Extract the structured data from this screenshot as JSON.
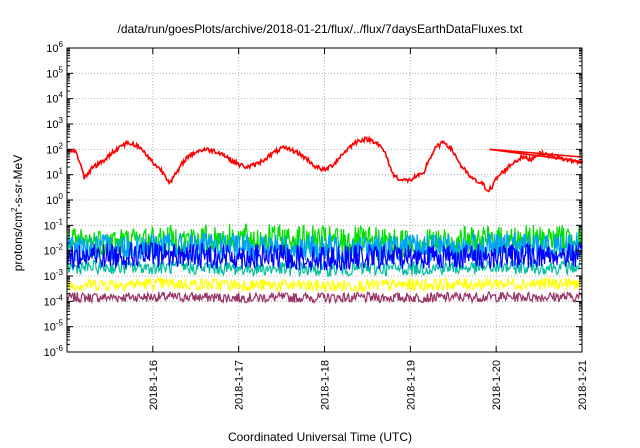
{
  "chart_data": {
    "type": "line",
    "title": "/data/run/goesPlots/archive/2018-01-21/flux/../flux/7daysEarthDataFluxes.txt",
    "xlabel": "Coordinated Universal Time (UTC)",
    "ylabel": {
      "before": "protons/cm",
      "sup": "2",
      "after": "-s-sr-MeV"
    },
    "x_ticks": [
      "2018-1-16",
      "2018-1-17",
      "2018-1-18",
      "2018-1-19",
      "2018-1-20",
      "2018-1-21"
    ],
    "xlim": [
      "2018-01-15 00:00",
      "2018-01-21 00:00"
    ],
    "y_scale": "log",
    "ylim": [
      1e-06,
      1000000.0
    ],
    "y_ticks": [
      "10^-6",
      "10^-5",
      "10^-4",
      "10^-3",
      "10^-2",
      "10^-1",
      "10^0",
      "10^1",
      "10^2",
      "10^3",
      "10^4",
      "10^5",
      "10^6"
    ],
    "grid": true,
    "legend": "none",
    "series": [
      {
        "color": "#ff0000",
        "x_days_after_2018_01_15": [
          0.0,
          0.05,
          0.1,
          0.15,
          0.2,
          0.25,
          0.3,
          0.4,
          0.5,
          0.6,
          0.7,
          0.8,
          0.9,
          1.0,
          1.1,
          1.2,
          1.3,
          1.35,
          1.4,
          1.5,
          1.6,
          1.7,
          1.8,
          1.9,
          2.0,
          2.1,
          2.2,
          2.3,
          2.4,
          2.5,
          2.6,
          2.7,
          2.8,
          2.9,
          3.0,
          3.1,
          3.2,
          3.3,
          3.4,
          3.5,
          3.6,
          3.7,
          3.8,
          3.9,
          4.0,
          4.05,
          4.1,
          4.15,
          4.2,
          4.3,
          4.4,
          4.5,
          4.6,
          4.7,
          4.75,
          4.8,
          4.85,
          4.9,
          4.95,
          5.0,
          5.1,
          5.2,
          5.3,
          5.4,
          5.5,
          5.6,
          5.7,
          5.8,
          5.9,
          6.0
        ],
        "values": [
          60,
          100,
          80,
          30,
          8,
          12,
          20,
          30,
          60,
          120,
          180,
          150,
          80,
          30,
          15,
          5,
          15,
          30,
          50,
          80,
          100,
          90,
          70,
          40,
          25,
          20,
          25,
          40,
          70,
          110,
          100,
          70,
          40,
          20,
          15,
          25,
          60,
          130,
          230,
          250,
          200,
          80,
          10,
          6,
          6,
          8,
          9,
          10,
          30,
          120,
          200,
          80,
          20,
          8,
          6,
          5,
          4,
          2.5,
          3,
          7,
          15,
          30,
          50,
          40,
          70,
          60,
          50,
          40,
          35,
          30
        ]
      },
      {
        "color": "#00e000",
        "x_days_after_2018_01_15": [
          0,
          1,
          2,
          3,
          4,
          5,
          6
        ],
        "values": [
          0.02,
          0.025,
          0.03,
          0.025,
          0.02,
          0.025,
          0.03
        ]
      },
      {
        "color": "#00a0ff",
        "x_days_after_2018_01_15": [
          0,
          1,
          2,
          3,
          4,
          5,
          6
        ],
        "values": [
          0.012,
          0.015,
          0.014,
          0.012,
          0.013,
          0.014,
          0.015
        ]
      },
      {
        "color": "#0000ff",
        "x_days_after_2018_01_15": [
          0,
          1,
          2,
          3,
          4,
          5,
          6
        ],
        "values": [
          0.006,
          0.007,
          0.006,
          0.005,
          0.006,
          0.006,
          0.007
        ]
      },
      {
        "color": "#00c0a0",
        "x_days_after_2018_01_15": [
          0,
          1,
          2,
          3,
          4,
          5,
          6
        ],
        "values": [
          0.0022,
          0.0022,
          0.002,
          0.0018,
          0.002,
          0.0022,
          0.0022
        ]
      },
      {
        "color": "#ffff00",
        "x_days_after_2018_01_15": [
          0,
          1,
          2,
          3,
          4,
          5,
          6
        ],
        "values": [
          0.00045,
          0.0005,
          0.00045,
          0.0004,
          0.00045,
          0.0005,
          0.0005
        ]
      },
      {
        "color": "#993366",
        "x_days_after_2018_01_15": [
          0,
          1,
          2,
          3,
          4,
          5,
          6
        ],
        "values": [
          0.00014,
          0.00015,
          0.00014,
          0.00014,
          0.00014,
          0.00015,
          0.00015
        ]
      }
    ]
  }
}
